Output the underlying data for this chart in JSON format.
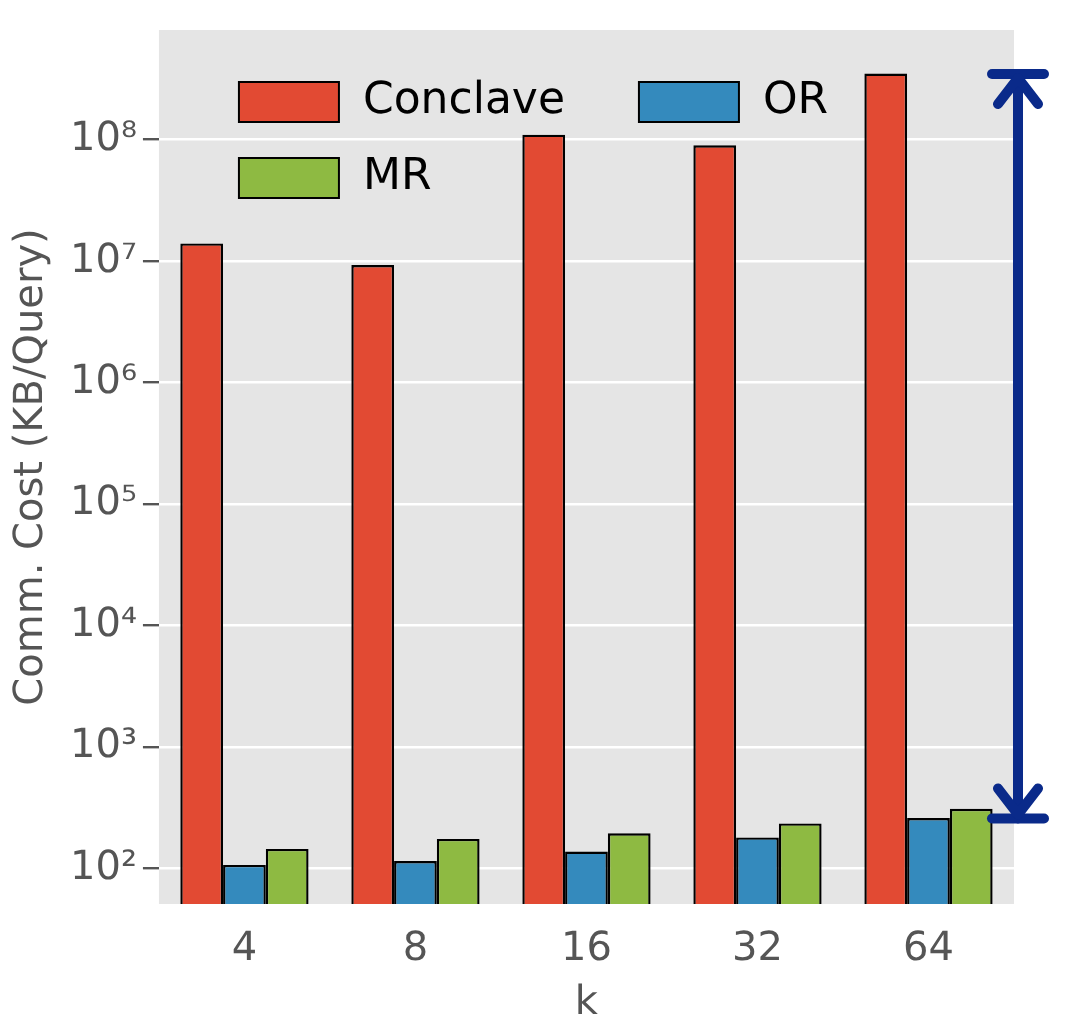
{
  "chart_data": {
    "type": "bar",
    "xlabel": "k",
    "ylabel": "Comm. Cost (KB/Query)",
    "categories": [
      "4",
      "8",
      "16",
      "32",
      "64"
    ],
    "series": [
      {
        "name": "Conclave",
        "color": "#e24a33",
        "values": [
          14000000,
          9300000,
          110000000,
          90000000,
          350000000
        ]
      },
      {
        "name": "OR",
        "color": "#348abd",
        "values": [
          107,
          115,
          138,
          180,
          260
        ]
      },
      {
        "name": "MR",
        "color": "#8eba42",
        "values": [
          145,
          175,
          195,
          235,
          310
        ]
      }
    ],
    "log": true,
    "ylim": [
      51,
      800000000
    ],
    "yticks": [
      {
        "value": 100,
        "label": "10²"
      },
      {
        "value": 1000,
        "label": "10³"
      },
      {
        "value": 10000,
        "label": "10⁴"
      },
      {
        "value": 100000,
        "label": "10⁵"
      },
      {
        "value": 1000000,
        "label": "10⁶"
      },
      {
        "value": 10000000,
        "label": "10⁷"
      },
      {
        "value": 100000000,
        "label": "10⁸"
      }
    ],
    "grid": "y",
    "legend": "top"
  }
}
